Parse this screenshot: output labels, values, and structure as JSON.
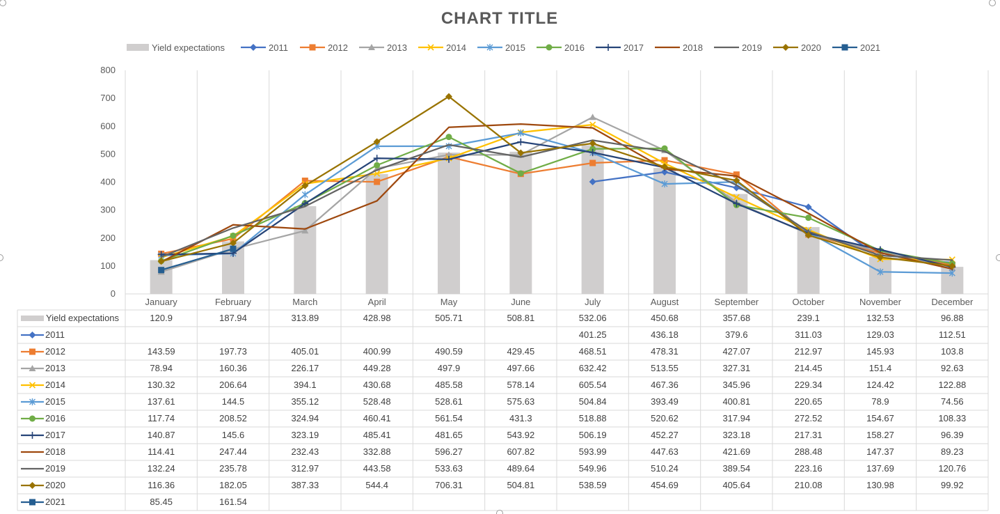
{
  "chart_data": {
    "type": "line",
    "title": "CHART TITLE",
    "categories": [
      "January",
      "February",
      "March",
      "April",
      "May",
      "June",
      "July",
      "August",
      "September",
      "October",
      "November",
      "December"
    ],
    "ylim": [
      0,
      800
    ],
    "yticks": [
      0,
      100,
      200,
      300,
      400,
      500,
      600,
      700,
      800
    ],
    "grid": "vertical",
    "legend": "top",
    "data_table": true,
    "bar_series": {
      "name": "Yield expectations",
      "color": "#d0cece",
      "values": [
        120.9,
        187.94,
        313.89,
        428.98,
        505.71,
        508.81,
        532.06,
        450.68,
        357.68,
        239.1,
        132.53,
        96.88
      ]
    },
    "series": [
      {
        "name": "2011",
        "color": "#4472c4",
        "marker": "diamond",
        "values": [
          null,
          null,
          null,
          null,
          null,
          null,
          401.25,
          436.18,
          379.6,
          311.03,
          129.03,
          112.51
        ]
      },
      {
        "name": "2012",
        "color": "#ed7d31",
        "marker": "square",
        "values": [
          143.59,
          197.73,
          405.01,
          400.99,
          490.59,
          429.45,
          468.51,
          478.31,
          427.07,
          212.97,
          145.93,
          103.8
        ]
      },
      {
        "name": "2013",
        "color": "#a5a5a5",
        "marker": "triangle",
        "values": [
          78.94,
          160.36,
          226.17,
          449.28,
          497.9,
          497.66,
          632.42,
          513.55,
          327.31,
          214.45,
          151.4,
          92.63
        ]
      },
      {
        "name": "2014",
        "color": "#ffc000",
        "marker": "x",
        "values": [
          130.32,
          206.64,
          394.1,
          430.68,
          485.58,
          578.14,
          605.54,
          467.36,
          345.96,
          229.34,
          124.42,
          122.88
        ]
      },
      {
        "name": "2015",
        "color": "#5b9bd5",
        "marker": "star",
        "values": [
          137.61,
          144.5,
          355.12,
          528.48,
          528.61,
          575.63,
          504.84,
          393.49,
          400.81,
          220.65,
          78.9,
          74.56
        ]
      },
      {
        "name": "2016",
        "color": "#70ad47",
        "marker": "circle",
        "values": [
          117.74,
          208.52,
          324.94,
          460.41,
          561.54,
          431.3,
          518.88,
          520.62,
          317.94,
          272.52,
          154.67,
          108.33
        ]
      },
      {
        "name": "2017",
        "color": "#264478",
        "marker": "plus",
        "values": [
          140.87,
          145.6,
          323.19,
          485.41,
          481.65,
          543.92,
          506.19,
          452.27,
          323.18,
          217.31,
          158.27,
          96.39
        ]
      },
      {
        "name": "2018",
        "color": "#9e480e",
        "marker": "none",
        "values": [
          114.41,
          247.44,
          232.43,
          332.88,
          596.27,
          607.82,
          593.99,
          447.63,
          421.69,
          288.48,
          147.37,
          89.23
        ]
      },
      {
        "name": "2019",
        "color": "#636363",
        "marker": "none",
        "values": [
          132.24,
          235.78,
          312.97,
          443.58,
          533.63,
          489.64,
          549.96,
          510.24,
          389.54,
          223.16,
          137.69,
          120.76
        ]
      },
      {
        "name": "2020",
        "color": "#997300",
        "marker": "diamond",
        "values": [
          116.36,
          182.05,
          387.33,
          544.4,
          706.31,
          504.81,
          538.59,
          454.69,
          405.64,
          210.08,
          130.98,
          99.92
        ]
      },
      {
        "name": "2021",
        "color": "#255e91",
        "marker": "square",
        "values": [
          85.45,
          161.54,
          null,
          null,
          null,
          null,
          null,
          null,
          null,
          null,
          null,
          null
        ]
      }
    ]
  }
}
